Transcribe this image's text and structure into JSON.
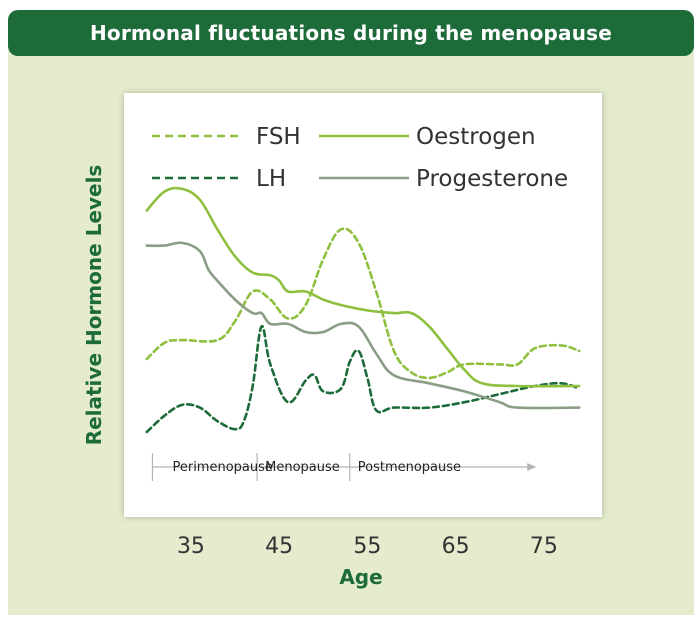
{
  "banner": {
    "title": "Hormonal fluctuations during the menopause"
  },
  "colors": {
    "banner_bg": "#1e6b3a",
    "panel_bg": "#e4eccd",
    "fsh": "#8fbf3f",
    "lh": "#1e6b3a",
    "oestrogen": "#8fbf3f",
    "progesterone": "#8a9e86"
  },
  "chart_data": {
    "type": "line",
    "title": "Hormonal fluctuations during the menopause",
    "xlabel": "Age",
    "ylabel": "Relative Hormone Levels",
    "xlim": [
      29,
      80
    ],
    "ylim": [
      0,
      1
    ],
    "x_ticks": [
      35,
      45,
      55,
      65,
      75
    ],
    "x_tick_labels": [
      "35",
      "45",
      "55",
      "65",
      "75"
    ],
    "grid": false,
    "legend": "top",
    "phases": [
      {
        "label": "Perimenopause",
        "start": 32,
        "end": 42.5
      },
      {
        "label": "Menopause",
        "start": 42.5,
        "end": 53
      },
      {
        "label": "Postmenopause",
        "start": 53,
        "end": 73
      }
    ],
    "series": [
      {
        "name": "FSH",
        "style": "dashed",
        "color": "#8fbf3f",
        "points": [
          [
            30,
            0.3
          ],
          [
            32,
            0.36
          ],
          [
            34,
            0.37
          ],
          [
            38,
            0.37
          ],
          [
            40,
            0.44
          ],
          [
            42,
            0.55
          ],
          [
            44,
            0.52
          ],
          [
            46,
            0.45
          ],
          [
            48,
            0.5
          ],
          [
            50,
            0.67
          ],
          [
            52,
            0.78
          ],
          [
            54,
            0.73
          ],
          [
            56,
            0.55
          ],
          [
            58,
            0.33
          ],
          [
            60,
            0.25
          ],
          [
            62,
            0.23
          ],
          [
            64,
            0.25
          ],
          [
            66,
            0.28
          ],
          [
            70,
            0.28
          ],
          [
            72,
            0.28
          ],
          [
            74,
            0.34
          ],
          [
            77,
            0.35
          ],
          [
            79,
            0.33
          ]
        ]
      },
      {
        "name": "LH",
        "style": "dashed",
        "color": "#1e6b3a",
        "points": [
          [
            30,
            0.03
          ],
          [
            32,
            0.09
          ],
          [
            34,
            0.13
          ],
          [
            36,
            0.12
          ],
          [
            38,
            0.07
          ],
          [
            40,
            0.04
          ],
          [
            41,
            0.07
          ],
          [
            42,
            0.2
          ],
          [
            43,
            0.42
          ],
          [
            44,
            0.28
          ],
          [
            46,
            0.14
          ],
          [
            48,
            0.22
          ],
          [
            49,
            0.24
          ],
          [
            50,
            0.18
          ],
          [
            52,
            0.19
          ],
          [
            53,
            0.29
          ],
          [
            54,
            0.33
          ],
          [
            55,
            0.23
          ],
          [
            56,
            0.11
          ],
          [
            58,
            0.12
          ],
          [
            62,
            0.12
          ],
          [
            66,
            0.14
          ],
          [
            70,
            0.17
          ],
          [
            74,
            0.2
          ],
          [
            77,
            0.21
          ],
          [
            79,
            0.19
          ]
        ]
      },
      {
        "name": "Oestrogen",
        "style": "solid",
        "color": "#8fbf3f",
        "points": [
          [
            30,
            0.85
          ],
          [
            32,
            0.92
          ],
          [
            34,
            0.93
          ],
          [
            36,
            0.89
          ],
          [
            38,
            0.78
          ],
          [
            40,
            0.68
          ],
          [
            42,
            0.62
          ],
          [
            44,
            0.61
          ],
          [
            45,
            0.59
          ],
          [
            46,
            0.55
          ],
          [
            48,
            0.55
          ],
          [
            50,
            0.52
          ],
          [
            52,
            0.5
          ],
          [
            55,
            0.48
          ],
          [
            58,
            0.47
          ],
          [
            60,
            0.47
          ],
          [
            62,
            0.42
          ],
          [
            64,
            0.34
          ],
          [
            66,
            0.26
          ],
          [
            68,
            0.21
          ],
          [
            72,
            0.2
          ],
          [
            79,
            0.2
          ]
        ]
      },
      {
        "name": "Progesterone",
        "style": "solid",
        "color": "#8a9e86",
        "points": [
          [
            30,
            0.72
          ],
          [
            32,
            0.72
          ],
          [
            34,
            0.73
          ],
          [
            36,
            0.7
          ],
          [
            37,
            0.63
          ],
          [
            38,
            0.59
          ],
          [
            40,
            0.52
          ],
          [
            42,
            0.47
          ],
          [
            43,
            0.47
          ],
          [
            44,
            0.43
          ],
          [
            46,
            0.43
          ],
          [
            48,
            0.4
          ],
          [
            50,
            0.4
          ],
          [
            52,
            0.43
          ],
          [
            54,
            0.42
          ],
          [
            56,
            0.32
          ],
          [
            58,
            0.24
          ],
          [
            62,
            0.21
          ],
          [
            66,
            0.18
          ],
          [
            70,
            0.14
          ],
          [
            72,
            0.12
          ],
          [
            79,
            0.12
          ]
        ]
      }
    ]
  }
}
